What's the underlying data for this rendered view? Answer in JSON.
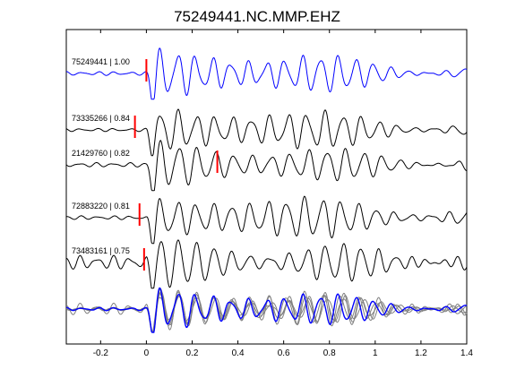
{
  "chart_data": {
    "type": "line",
    "title": "75249441.NC.MMP.EHZ",
    "xlim": [
      -0.35,
      1.4
    ],
    "xticks": [
      "-0.2",
      "0",
      "0.2",
      "0.4",
      "0.6",
      "0.8",
      "1",
      "1.2",
      "1.4"
    ],
    "xtick_values": [
      -0.2,
      0,
      0.2,
      0.4,
      0.6,
      0.8,
      1.0,
      1.2,
      1.4
    ],
    "grid": false,
    "traces": [
      {
        "label": "75249441 | 1.00",
        "id": "75249441",
        "cc": 1.0,
        "pick": 0.0,
        "color": "#0000ff",
        "onset": 0.0,
        "period": 0.078,
        "amp": 1.0,
        "noise": 0.06,
        "seed": 11
      },
      {
        "label": "73335266 | 0.84",
        "id": "73335266",
        "cc": 0.84,
        "pick": -0.05,
        "color": "#000000",
        "onset": 0.0,
        "period": 0.08,
        "amp": 0.95,
        "noise": 0.05,
        "seed": 23
      },
      {
        "label": "21429760 | 0.82",
        "id": "21429760",
        "cc": 0.82,
        "pick": 0.31,
        "color": "#000000",
        "onset": 0.0,
        "period": 0.081,
        "amp": 0.95,
        "noise": 0.07,
        "seed": 37
      },
      {
        "label": "72883220 | 0.81",
        "id": "72883220",
        "cc": 0.81,
        "pick": -0.03,
        "color": "#000000",
        "onset": 0.0,
        "period": 0.079,
        "amp": 0.95,
        "noise": 0.06,
        "seed": 41
      },
      {
        "label": "73483161 | 0.75",
        "id": "73483161",
        "cc": 0.75,
        "pick": -0.01,
        "color": "#000000",
        "onset": 0.0,
        "period": 0.08,
        "amp": 0.95,
        "noise": 0.22,
        "seed": 53
      }
    ],
    "stack": {
      "colors": [
        "#808080",
        "#0000ff"
      ]
    }
  }
}
